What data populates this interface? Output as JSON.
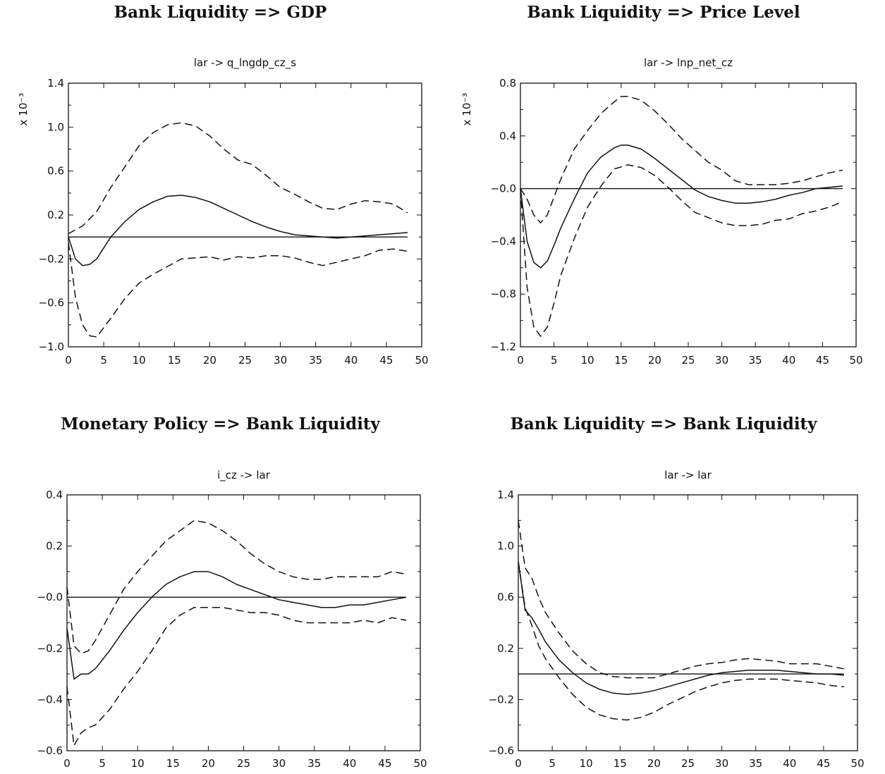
{
  "chart_data": [
    {
      "type": "line",
      "title": "Bank Liquidity => GDP",
      "subtitle": "lar -> q_lngdp_cz_s",
      "scale_label": "x 10⁻³",
      "xlim": [
        0,
        50
      ],
      "ylim": [
        -1.0,
        1.4
      ],
      "xticks": [
        "0",
        "5",
        "10",
        "15",
        "20",
        "25",
        "30",
        "35",
        "40",
        "45",
        "50"
      ],
      "yticks": [
        "1.4",
        "1.0",
        "0.6",
        "0.2",
        "-0.2",
        "-0.6",
        "-1.0"
      ],
      "zero_line": true,
      "series": [
        {
          "style": "solid",
          "x": [
            0,
            1,
            2,
            3,
            4,
            6,
            8,
            10,
            12,
            14,
            16,
            18,
            20,
            22,
            24,
            26,
            28,
            30,
            32,
            34,
            36,
            38,
            40,
            42,
            44,
            46,
            48
          ],
          "y": [
            0.0,
            -0.2,
            -0.26,
            -0.25,
            -0.2,
            0.0,
            0.14,
            0.25,
            0.32,
            0.37,
            0.38,
            0.36,
            0.32,
            0.26,
            0.2,
            0.14,
            0.09,
            0.05,
            0.02,
            0.01,
            0.0,
            -0.01,
            0.0,
            0.01,
            0.02,
            0.03,
            0.04
          ]
        },
        {
          "style": "dashed",
          "x": [
            0,
            2,
            4,
            6,
            8,
            10,
            12,
            14,
            16,
            18,
            20,
            22,
            24,
            26,
            28,
            30,
            32,
            34,
            36,
            38,
            40,
            42,
            44,
            46,
            48
          ],
          "y": [
            0.03,
            0.1,
            0.23,
            0.45,
            0.64,
            0.83,
            0.95,
            1.02,
            1.04,
            1.01,
            0.92,
            0.8,
            0.7,
            0.66,
            0.56,
            0.45,
            0.39,
            0.32,
            0.26,
            0.25,
            0.3,
            0.33,
            0.32,
            0.3,
            0.22
          ]
        },
        {
          "style": "dashed",
          "x": [
            0,
            1,
            2,
            3,
            4,
            6,
            8,
            10,
            12,
            14,
            16,
            18,
            20,
            22,
            24,
            26,
            28,
            30,
            32,
            34,
            36,
            38,
            40,
            42,
            44,
            46,
            48
          ],
          "y": [
            -0.05,
            -0.55,
            -0.8,
            -0.9,
            -0.91,
            -0.74,
            -0.56,
            -0.42,
            -0.34,
            -0.27,
            -0.2,
            -0.19,
            -0.18,
            -0.21,
            -0.18,
            -0.19,
            -0.17,
            -0.17,
            -0.19,
            -0.23,
            -0.26,
            -0.23,
            -0.2,
            -0.17,
            -0.12,
            -0.11,
            -0.13
          ]
        }
      ]
    },
    {
      "type": "line",
      "title": "Bank Liquidity => Price Level",
      "subtitle": "lar -> lnp_net_cz",
      "scale_label": "x 10⁻³",
      "xlim": [
        0,
        50
      ],
      "ylim": [
        -1.2,
        0.8
      ],
      "xticks": [
        "0",
        "5",
        "10",
        "15",
        "20",
        "25",
        "30",
        "35",
        "40",
        "45",
        "50"
      ],
      "yticks": [
        "0.8",
        "0.4",
        "-0.0",
        "-0.4",
        "-0.8",
        "-1.2"
      ],
      "zero_line": true,
      "series": [
        {
          "style": "solid",
          "x": [
            0,
            1,
            2,
            3,
            4,
            5,
            6,
            8,
            10,
            12,
            14,
            15,
            16,
            18,
            20,
            22,
            24,
            26,
            28,
            30,
            32,
            34,
            36,
            38,
            40,
            42,
            44,
            46,
            48
          ],
          "y": [
            0.0,
            -0.4,
            -0.56,
            -0.6,
            -0.55,
            -0.43,
            -0.3,
            -0.08,
            0.12,
            0.24,
            0.31,
            0.33,
            0.33,
            0.3,
            0.23,
            0.15,
            0.07,
            -0.01,
            -0.06,
            -0.09,
            -0.11,
            -0.11,
            -0.1,
            -0.08,
            -0.05,
            -0.03,
            0.0,
            0.01,
            0.02
          ]
        },
        {
          "style": "dashed",
          "x": [
            0,
            1,
            2,
            3,
            4,
            6,
            8,
            10,
            12,
            14,
            15,
            16,
            18,
            20,
            22,
            24,
            26,
            28,
            30,
            32,
            34,
            36,
            38,
            40,
            42,
            44,
            46,
            48
          ],
          "y": [
            0.0,
            -0.08,
            -0.2,
            -0.26,
            -0.2,
            0.07,
            0.3,
            0.44,
            0.57,
            0.66,
            0.7,
            0.7,
            0.67,
            0.59,
            0.49,
            0.38,
            0.29,
            0.2,
            0.14,
            0.06,
            0.03,
            0.03,
            0.03,
            0.04,
            0.06,
            0.09,
            0.12,
            0.14
          ]
        },
        {
          "style": "dashed",
          "x": [
            0,
            1,
            2,
            3,
            4,
            5,
            6,
            8,
            10,
            12,
            14,
            16,
            18,
            20,
            22,
            24,
            26,
            28,
            30,
            32,
            34,
            36,
            38,
            40,
            42,
            44,
            46,
            48
          ],
          "y": [
            0.0,
            -0.75,
            -1.05,
            -1.12,
            -1.05,
            -0.87,
            -0.66,
            -0.38,
            -0.14,
            0.02,
            0.15,
            0.18,
            0.16,
            0.1,
            0.01,
            -0.09,
            -0.18,
            -0.22,
            -0.26,
            -0.28,
            -0.28,
            -0.27,
            -0.24,
            -0.23,
            -0.19,
            -0.17,
            -0.14,
            -0.1
          ]
        }
      ]
    },
    {
      "type": "line",
      "title": "Monetary Policy => Bank Liquidity",
      "subtitle": "i_cz -> lar",
      "scale_label": "",
      "xlim": [
        0,
        50
      ],
      "ylim": [
        -0.6,
        0.4
      ],
      "xticks": [
        "0",
        "5",
        "10",
        "15",
        "20",
        "25",
        "30",
        "35",
        "40",
        "45",
        "50"
      ],
      "yticks": [
        "0.4",
        "0.2",
        "-0.0",
        "-0.2",
        "-0.4",
        "-0.6"
      ],
      "zero_line": true,
      "series": [
        {
          "style": "solid",
          "x": [
            0,
            1,
            2,
            3,
            4,
            6,
            8,
            10,
            12,
            14,
            16,
            18,
            19,
            20,
            22,
            24,
            26,
            28,
            30,
            32,
            34,
            36,
            38,
            40,
            42,
            44,
            46,
            48
          ],
          "y": [
            -0.12,
            -0.32,
            -0.3,
            -0.3,
            -0.28,
            -0.21,
            -0.13,
            -0.06,
            0.0,
            0.05,
            0.08,
            0.1,
            0.1,
            0.1,
            0.08,
            0.05,
            0.03,
            0.01,
            -0.01,
            -0.02,
            -0.03,
            -0.04,
            -0.04,
            -0.03,
            -0.03,
            -0.02,
            -0.01,
            0.0
          ]
        },
        {
          "style": "dashed",
          "x": [
            0,
            1,
            2,
            3,
            4,
            6,
            8,
            10,
            12,
            14,
            16,
            18,
            20,
            22,
            24,
            26,
            28,
            30,
            32,
            34,
            36,
            38,
            40,
            42,
            44,
            46,
            48
          ],
          "y": [
            0.04,
            -0.19,
            -0.22,
            -0.21,
            -0.17,
            -0.07,
            0.03,
            0.1,
            0.16,
            0.22,
            0.26,
            0.3,
            0.29,
            0.26,
            0.22,
            0.17,
            0.13,
            0.1,
            0.08,
            0.07,
            0.07,
            0.08,
            0.08,
            0.08,
            0.08,
            0.1,
            0.09
          ]
        },
        {
          "style": "dashed",
          "x": [
            0,
            1,
            2,
            3,
            4,
            6,
            8,
            10,
            12,
            14,
            16,
            18,
            20,
            22,
            24,
            26,
            28,
            30,
            32,
            34,
            36,
            38,
            40,
            42,
            44,
            46,
            48
          ],
          "y": [
            -0.35,
            -0.58,
            -0.53,
            -0.51,
            -0.5,
            -0.44,
            -0.36,
            -0.29,
            -0.21,
            -0.12,
            -0.07,
            -0.04,
            -0.04,
            -0.04,
            -0.05,
            -0.06,
            -0.06,
            -0.07,
            -0.09,
            -0.1,
            -0.1,
            -0.1,
            -0.1,
            -0.09,
            -0.1,
            -0.08,
            -0.09
          ]
        }
      ]
    },
    {
      "type": "line",
      "title": "Bank Liquidity => Bank Liquidity",
      "subtitle": "lar -> lar",
      "scale_label": "",
      "xlim": [
        0,
        50
      ],
      "ylim": [
        -0.6,
        1.4
      ],
      "xticks": [
        "0",
        "5",
        "10",
        "15",
        "20",
        "25",
        "30",
        "35",
        "40",
        "45",
        "50"
      ],
      "yticks": [
        "1.4",
        "1.0",
        "0.6",
        "0.2",
        "-0.2",
        "-0.6"
      ],
      "zero_line": true,
      "series": [
        {
          "style": "solid",
          "x": [
            0,
            1,
            2,
            3,
            4,
            6,
            8,
            10,
            12,
            14,
            16,
            18,
            20,
            22,
            24,
            26,
            28,
            30,
            32,
            34,
            36,
            38,
            40,
            42,
            44,
            46,
            48
          ],
          "y": [
            0.88,
            0.5,
            0.44,
            0.35,
            0.25,
            0.11,
            0.01,
            -0.07,
            -0.12,
            -0.15,
            -0.16,
            -0.15,
            -0.13,
            -0.1,
            -0.07,
            -0.04,
            -0.01,
            0.01,
            0.02,
            0.03,
            0.03,
            0.03,
            0.02,
            0.01,
            0.0,
            0.0,
            -0.01
          ]
        },
        {
          "style": "dashed",
          "x": [
            0,
            1,
            2,
            3,
            4,
            6,
            8,
            10,
            12,
            14,
            16,
            18,
            20,
            22,
            24,
            26,
            28,
            30,
            32,
            34,
            36,
            38,
            40,
            42,
            44,
            46,
            48
          ],
          "y": [
            1.2,
            0.83,
            0.75,
            0.6,
            0.48,
            0.32,
            0.18,
            0.08,
            0.01,
            -0.02,
            -0.03,
            -0.03,
            -0.03,
            0.0,
            0.03,
            0.06,
            0.08,
            0.09,
            0.11,
            0.12,
            0.11,
            0.1,
            0.08,
            0.08,
            0.08,
            0.06,
            0.04
          ]
        },
        {
          "style": "dashed",
          "x": [
            0,
            1,
            2,
            3,
            4,
            6,
            8,
            10,
            12,
            14,
            16,
            18,
            20,
            22,
            24,
            26,
            28,
            30,
            32,
            34,
            36,
            38,
            40,
            42,
            44,
            46,
            48
          ],
          "y": [
            0.88,
            0.52,
            0.38,
            0.22,
            0.12,
            -0.03,
            -0.16,
            -0.26,
            -0.32,
            -0.35,
            -0.36,
            -0.34,
            -0.3,
            -0.24,
            -0.19,
            -0.14,
            -0.1,
            -0.07,
            -0.05,
            -0.04,
            -0.04,
            -0.04,
            -0.05,
            -0.06,
            -0.07,
            -0.09,
            -0.1
          ]
        }
      ]
    }
  ]
}
